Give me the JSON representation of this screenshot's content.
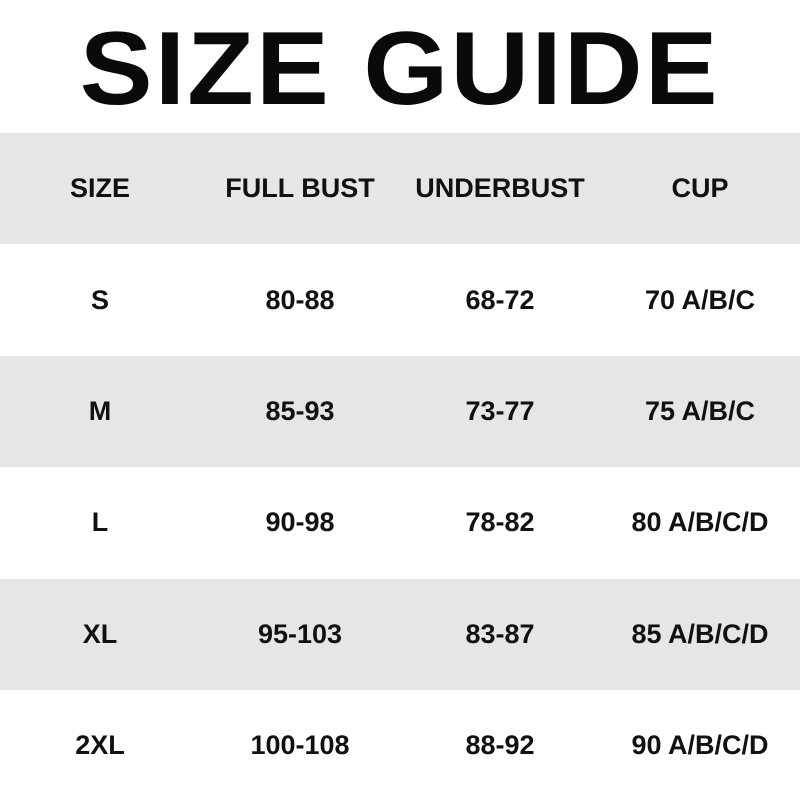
{
  "title": "SIZE GUIDE",
  "colors": {
    "band": "#e6e6e6",
    "text": "#111111"
  },
  "table": {
    "headers": [
      "SIZE",
      "FULL BUST",
      "UNDERBUST",
      "CUP"
    ],
    "rows": [
      [
        "S",
        "80-88",
        "68-72",
        "70 A/B/C"
      ],
      [
        "M",
        "85-93",
        "73-77",
        "75 A/B/C"
      ],
      [
        "L",
        "90-98",
        "78-82",
        "80 A/B/C/D"
      ],
      [
        "XL",
        "95-103",
        "83-87",
        "85 A/B/C/D"
      ],
      [
        "2XL",
        "100-108",
        "88-92",
        "90 A/B/C/D"
      ]
    ]
  }
}
